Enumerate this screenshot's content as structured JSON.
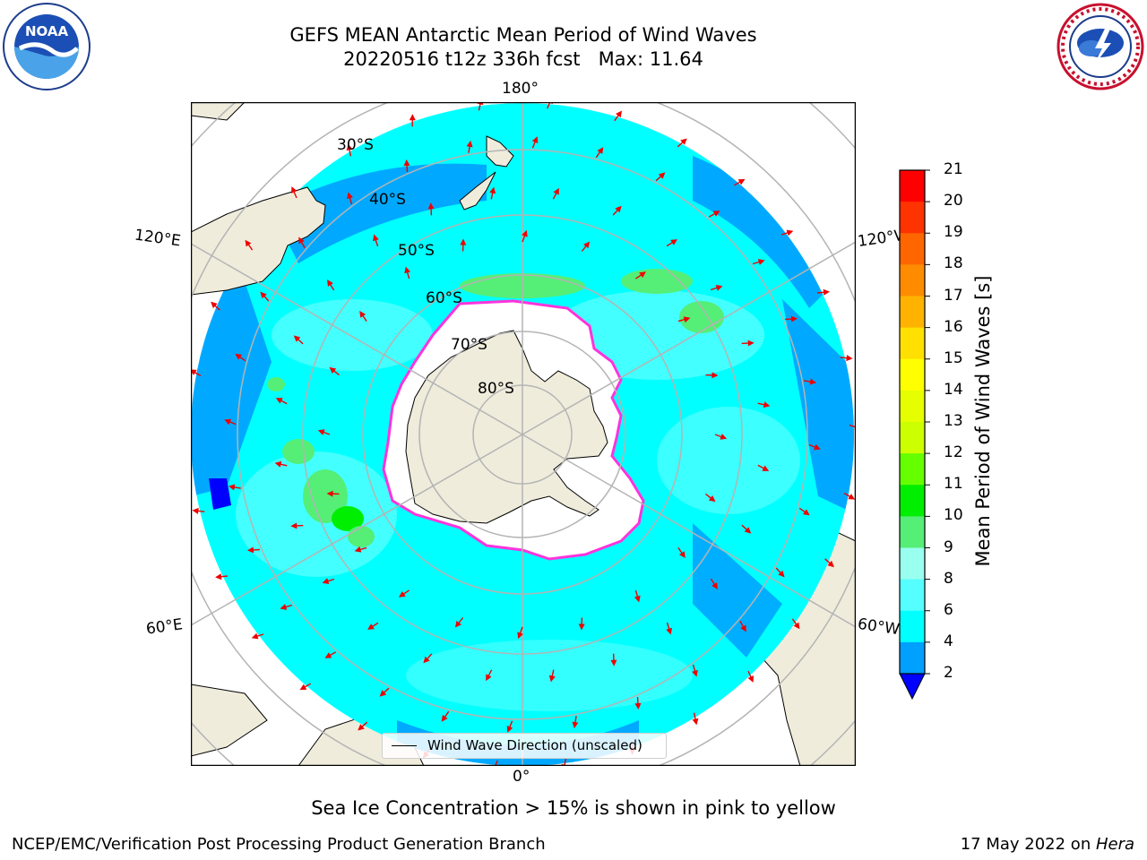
{
  "title": {
    "line1": "GEFS MEAN Antarctic Mean Period of Wind Waves",
    "line2": "20220516 t12z 336h fcst   Max: 11.64"
  },
  "logos": {
    "left": {
      "text": "NOAA",
      "ring_text": "NATIONAL OCEANIC AND ATMOSPHERIC ADMINISTRATION · U.S. DEPARTMENT OF COMMERCE"
    },
    "right": {
      "ring_text": "NATIONAL WEATHER SERVICE"
    }
  },
  "map": {
    "projection": "south-polar-stereographic",
    "longitude_labels": {
      "top": "180°",
      "bottom": "0°",
      "upper_left": "120°E",
      "upper_right": "120°W",
      "lower_left": "60°E",
      "lower_right": "60°W"
    },
    "latitude_labels": [
      "30°S",
      "40°S",
      "50°S",
      "60°S",
      "70°S",
      "80°S"
    ],
    "colors": {
      "land": "#efecdc",
      "ice": "#ffffff",
      "ice_edge": "#ff33dd",
      "arrow": "#ee0000",
      "grid": "#b4b4b4"
    }
  },
  "legend": {
    "label": "Wind Wave Direction (unscaled)"
  },
  "colorbar": {
    "title": "Mean Period of Wind Waves [s]",
    "ticks": [
      "21",
      "20",
      "19",
      "18",
      "17",
      "16",
      "15",
      "14",
      "13",
      "12",
      "11",
      "10",
      "9",
      "8",
      "6",
      "4",
      "2"
    ],
    "bins": [
      {
        "from": 20,
        "to": 21,
        "color": "#ff0000"
      },
      {
        "from": 19,
        "to": 20,
        "color": "#ff3300"
      },
      {
        "from": 18,
        "to": 19,
        "color": "#ff6600"
      },
      {
        "from": 17,
        "to": 18,
        "color": "#ff8c00"
      },
      {
        "from": 16,
        "to": 17,
        "color": "#ffb300"
      },
      {
        "from": 15,
        "to": 16,
        "color": "#ffe000"
      },
      {
        "from": 14,
        "to": 15,
        "color": "#ffff00"
      },
      {
        "from": 13,
        "to": 14,
        "color": "#e6ff00"
      },
      {
        "from": 12,
        "to": 13,
        "color": "#ccff00"
      },
      {
        "from": 11,
        "to": 12,
        "color": "#66ff00"
      },
      {
        "from": 10,
        "to": 11,
        "color": "#00ee00"
      },
      {
        "from": 9,
        "to": 10,
        "color": "#55ee77"
      },
      {
        "from": 8,
        "to": 9,
        "color": "#99ffee"
      },
      {
        "from": 6,
        "to": 8,
        "color": "#55ffff"
      },
      {
        "from": 4,
        "to": 6,
        "color": "#00ffff"
      },
      {
        "from": 2,
        "to": 4,
        "color": "#00a0ff"
      }
    ],
    "extend_color": "#0000ff"
  },
  "note": "Sea Ice Concentration > 15% is shown in pink to yellow",
  "footer": {
    "left": "NCEP/EMC/Verification Post Processing Product Generation Branch",
    "right_prefix": "17 May 2022 on ",
    "right_machine": "Hera"
  }
}
